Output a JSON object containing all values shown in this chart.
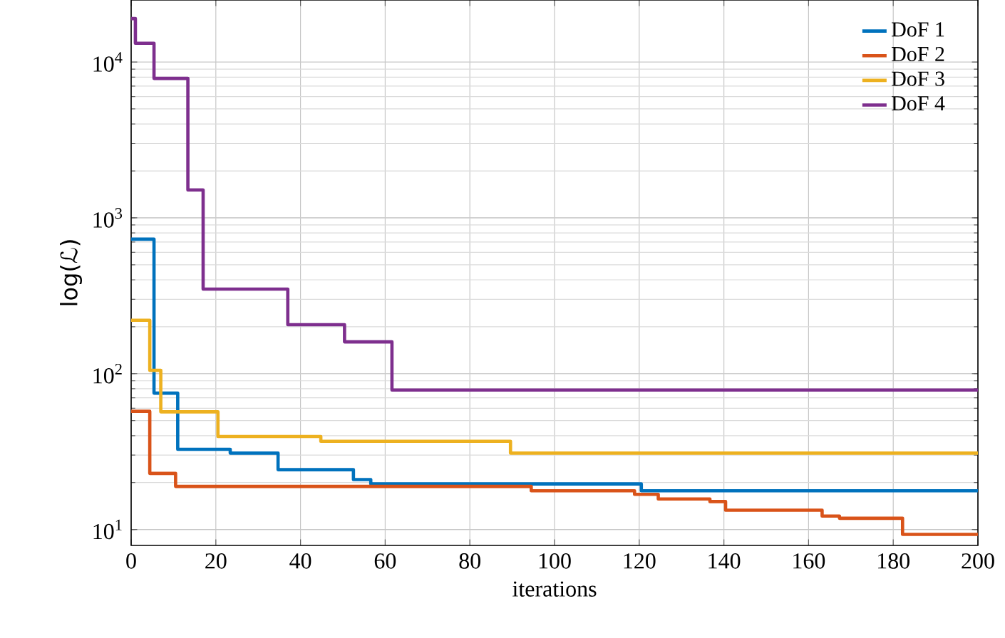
{
  "chart_data": {
    "type": "step",
    "xlabel": "iterations",
    "ylabel": "log(ℒ)",
    "xlim": [
      0,
      200
    ],
    "ylim": [
      7.9,
      25000
    ],
    "log": "y",
    "grid": true,
    "legend": "top right",
    "line_style": "solid",
    "marker": "none",
    "xticks": [
      0,
      20,
      40,
      60,
      80,
      100,
      120,
      140,
      160,
      180,
      200
    ],
    "yticks": [
      {
        "value": 10,
        "label": "10$^{1}$"
      },
      {
        "value": 100,
        "label": "10$^{2}$"
      },
      {
        "value": 1000,
        "label": "10$^{3}$"
      },
      {
        "value": 10000,
        "label": "10$^{4}$"
      }
    ],
    "series": [
      {
        "name": "DoF 1",
        "color": "#0072bd",
        "x": [
          0,
          5.4,
          11,
          23.4,
          34.7,
          52.5,
          56.6,
          120.5,
          200
        ],
        "values": [
          730,
          75,
          32.7,
          30.9,
          24.2,
          20.9,
          19.6,
          17.7,
          17.7
        ]
      },
      {
        "name": "DoF 2",
        "color": "#d95319",
        "x": [
          0,
          4.4,
          10.5,
          94.5,
          118.9,
          124.5,
          136.7,
          140.4,
          163.2,
          167.3,
          182.2,
          200
        ],
        "values": [
          57.3,
          22.9,
          18.9,
          17.7,
          16.8,
          15.7,
          15.1,
          13.3,
          12.2,
          11.8,
          9.3,
          9.3
        ]
      },
      {
        "name": "DoF 3",
        "color": "#edb120",
        "x": [
          0,
          4.4,
          7,
          20.5,
          44.8,
          89.6,
          200
        ],
        "values": [
          220,
          105,
          56.9,
          39.5,
          36.8,
          30.9,
          30.9
        ]
      },
      {
        "name": "DoF 4",
        "color": "#7e2f8e",
        "x": [
          0,
          1,
          5.4,
          13.4,
          17,
          37,
          50.4,
          61.6,
          200
        ],
        "values": [
          19000,
          13200,
          7850,
          1510,
          349,
          206,
          160,
          78.5,
          78.5
        ]
      }
    ]
  }
}
